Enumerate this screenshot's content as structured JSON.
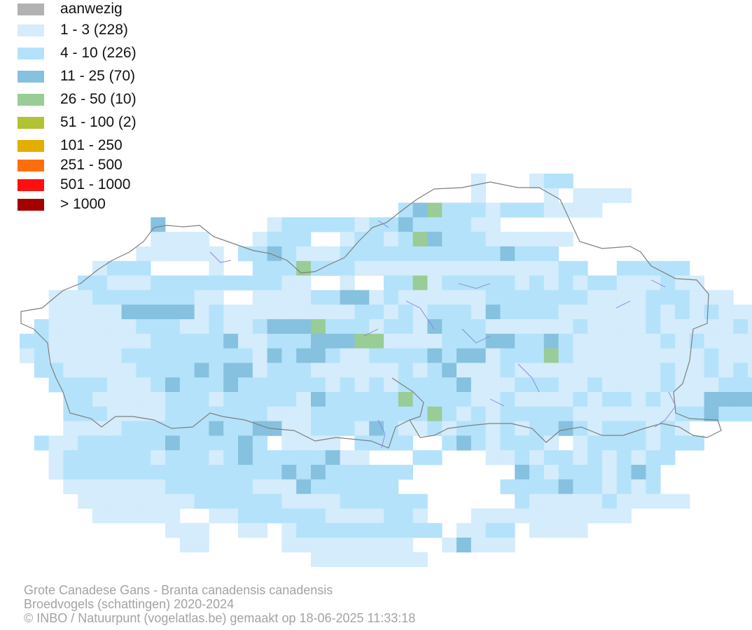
{
  "legend": {
    "items": [
      {
        "label": "aanwezig",
        "color": "#b2b2b2"
      },
      {
        "label": "1 - 3 (228)",
        "color": "#d4ecfb"
      },
      {
        "label": "4 - 10 (226)",
        "color": "#b4e2fa"
      },
      {
        "label": "11 - 25 (70)",
        "color": "#86c1df"
      },
      {
        "label": "26 - 50 (10)",
        "color": "#99cc96"
      },
      {
        "label": "51 - 100 (2)",
        "color": "#b2c232"
      },
      {
        "label": "101 - 250",
        "color": "#e3ae00"
      },
      {
        "label": "251 - 500",
        "color": "#ff6e0c"
      },
      {
        "label": "501 - 1000",
        "color": "#ff0f0f"
      },
      {
        "label": "> 1000",
        "color": "#a30000"
      }
    ]
  },
  "footer": {
    "species": "Grote Canadese Gans - Branta canadensis canadensis",
    "subtitle": "Broedvogels (schattingen) 2020-2024",
    "credit": "© INBO / Natuurpunt (vogelatlas.be) gemaakt op 18-06-2025 11:33:18"
  }
}
